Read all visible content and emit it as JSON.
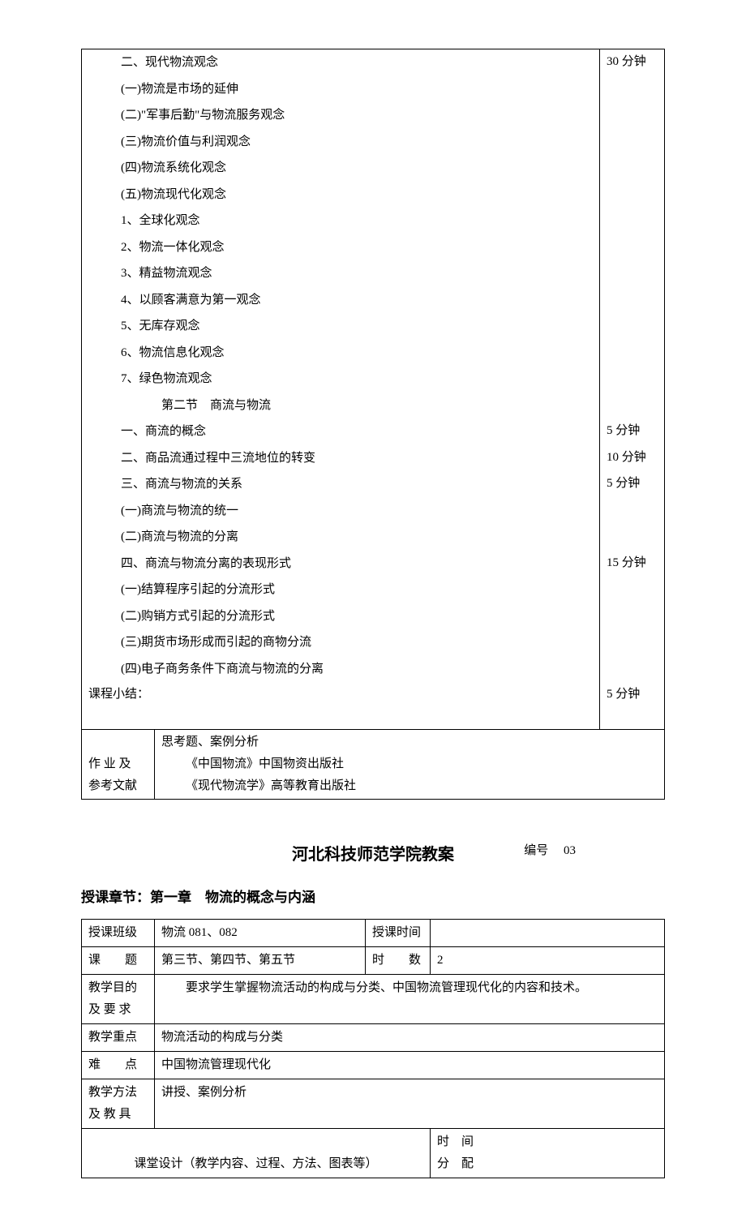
{
  "table1": {
    "rows": [
      {
        "text": "二、现代物流观念",
        "time": "30 分钟",
        "indent": "indent1"
      },
      {
        "text": "(一)物流是市场的延伸",
        "time": "",
        "indent": "indent1"
      },
      {
        "text": "(二)\"军事后勤\"与物流服务观念",
        "time": "",
        "indent": "indent1"
      },
      {
        "text": "(三)物流价值与利润观念",
        "time": "",
        "indent": "indent1"
      },
      {
        "text": "(四)物流系统化观念",
        "time": "",
        "indent": "indent1"
      },
      {
        "text": "(五)物流现代化观念",
        "time": "",
        "indent": "indent1"
      },
      {
        "text": "1、全球化观念",
        "time": "",
        "indent": "indent1"
      },
      {
        "text": "2、物流一体化观念",
        "time": "",
        "indent": "indent1"
      },
      {
        "text": "3、精益物流观念",
        "time": "",
        "indent": "indent1"
      },
      {
        "text": "4、以顾客满意为第一观念",
        "time": "",
        "indent": "indent1"
      },
      {
        "text": "5、无库存观念",
        "time": "",
        "indent": "indent1"
      },
      {
        "text": "6、物流信息化观念",
        "time": "",
        "indent": "indent1"
      },
      {
        "text": "7、绿色物流观念",
        "time": "",
        "indent": "indent1"
      },
      {
        "text": "第二节　商流与物流",
        "time": "",
        "indent": "indent2"
      },
      {
        "text": "一、商流的概念",
        "time": "5 分钟",
        "indent": "indent1"
      },
      {
        "text": "二、商品流通过程中三流地位的转变",
        "time": "10 分钟",
        "indent": "indent1"
      },
      {
        "text": "三、商流与物流的关系",
        "time": "5 分钟",
        "indent": "indent1"
      },
      {
        "text": "(一)商流与物流的统一",
        "time": "",
        "indent": "indent1"
      },
      {
        "text": "(二)商流与物流的分离",
        "time": "",
        "indent": "indent1"
      },
      {
        "text": "四、商流与物流分离的表现形式",
        "time": "15 分钟",
        "indent": "indent1"
      },
      {
        "text": "(一)结算程序引起的分流形式",
        "time": "",
        "indent": "indent1"
      },
      {
        "text": "(二)购销方式引起的分流形式",
        "time": "",
        "indent": "indent1"
      },
      {
        "text": "(三)期货市场形成而引起的商物分流",
        "time": "",
        "indent": "indent1"
      },
      {
        "text": "(四)电子商务条件下商流与物流的分离",
        "time": "",
        "indent": "indent1"
      }
    ],
    "summary_label": "课程小结：",
    "summary_time": "5 分钟",
    "homework_label1": "作 业 及",
    "homework_label2": "参考文献",
    "homework_content1": "思考题、案例分析",
    "homework_content2": "《中国物流》中国物资出版社",
    "homework_content3": "《现代物流学》高等教育出版社"
  },
  "header2": {
    "title": "河北科技师范学院教案",
    "number_label": "编号",
    "number": "03",
    "chapter": "授课章节：第一章　物流的概念与内涵"
  },
  "table2": {
    "row1": {
      "label": "授课班级",
      "value": "物流 081、082",
      "label2": "授课时间",
      "value2": ""
    },
    "row2": {
      "label": "课　　题",
      "value": "第三节、第四节、第五节",
      "label2": "时　　数",
      "value2": "2"
    },
    "row3": {
      "label1": "教学目的",
      "label2": "及 要 求",
      "value": "　　要求学生掌握物流活动的构成与分类、中国物流管理现代化的内容和技术。"
    },
    "row4": {
      "label": "教学重点",
      "value": "物流活动的构成与分类"
    },
    "row5": {
      "label": "难　　点",
      "value": "中国物流管理现代化"
    },
    "row6": {
      "label1": "教学方法",
      "label2": "及 教 具",
      "value": "讲授、案例分析"
    },
    "row7": {
      "label": "课堂设计（教学内容、过程、方法、图表等）",
      "label2a": "时　间",
      "label2b": "分　配"
    }
  }
}
